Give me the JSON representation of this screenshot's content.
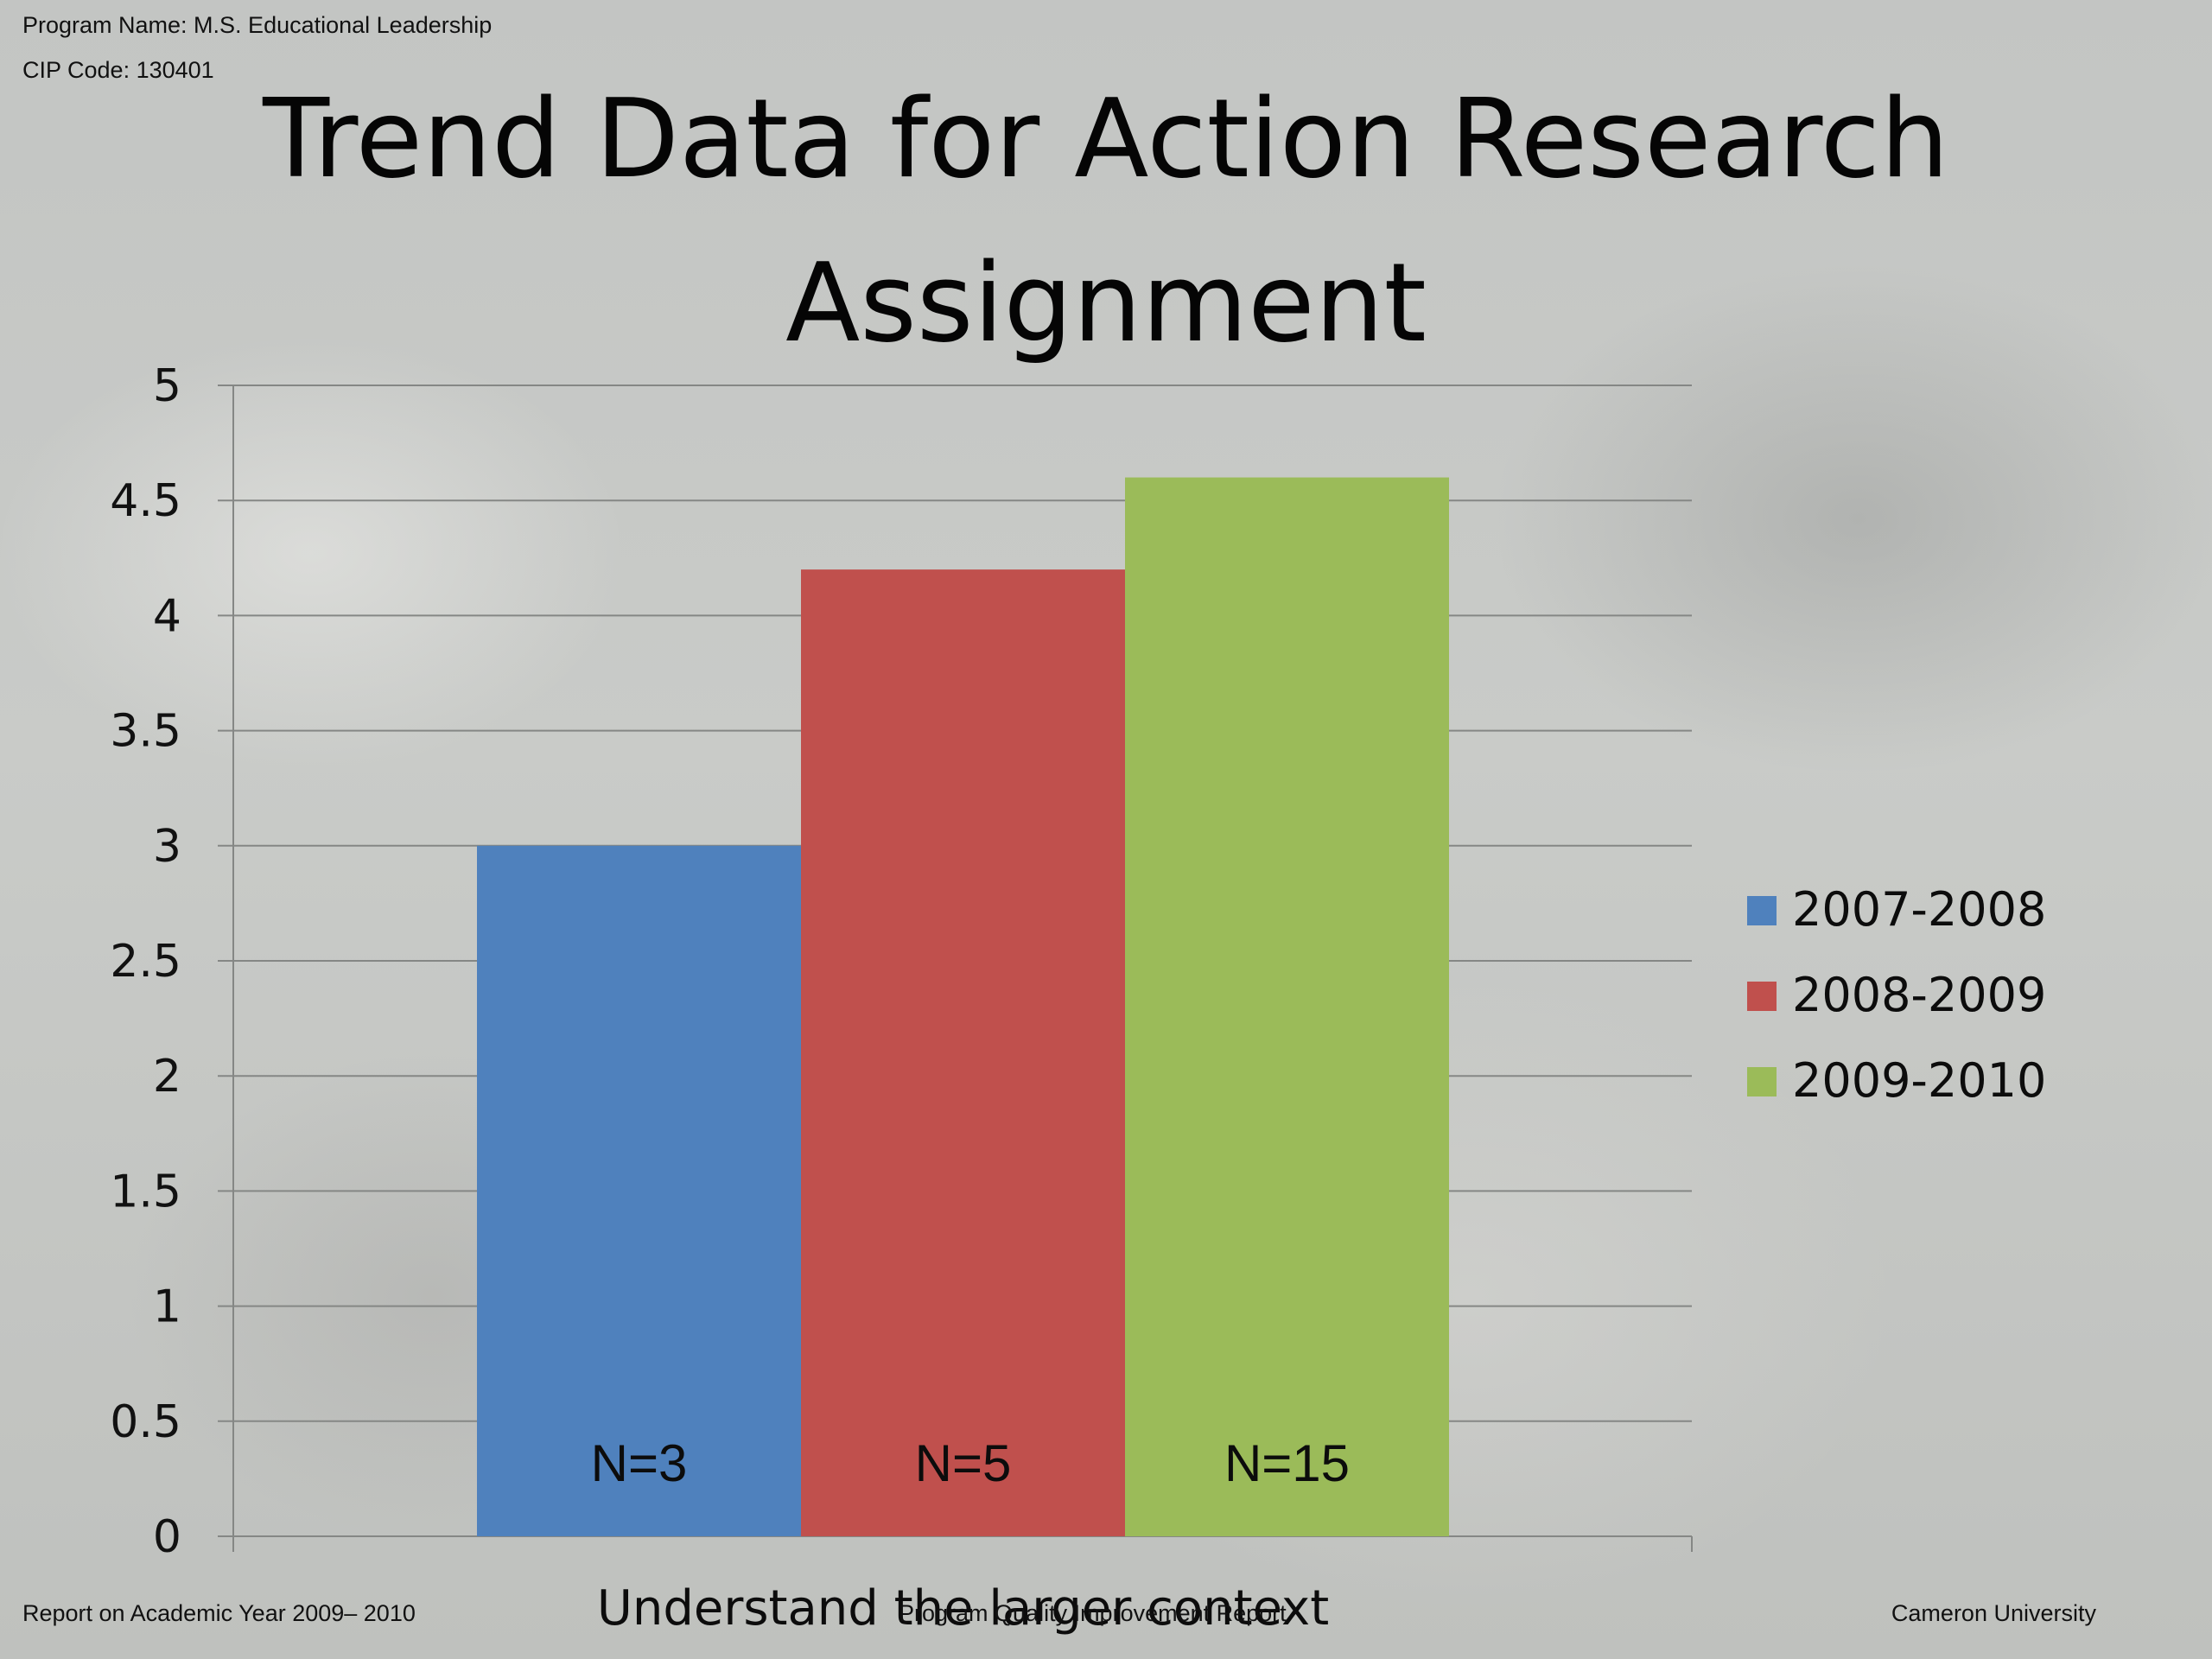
{
  "header": {
    "program_name": "Program Name: M.S. Educational Leadership",
    "cip_code": "CIP Code: 130401"
  },
  "footer": {
    "left": "Report on Academic Year 2009– 2010",
    "center": "Program Quality Improvement Report",
    "right": "Cameron University"
  },
  "chart_data": {
    "type": "bar",
    "title": "Trend Data for Action Research Assignment",
    "categories": [
      "Understand the larger context"
    ],
    "series": [
      {
        "name": "2007-2008",
        "values": [
          3.0
        ],
        "label": "N=3",
        "color": "#4f81bd"
      },
      {
        "name": "2008-2009",
        "values": [
          4.2
        ],
        "label": "N=5",
        "color": "#c0504d"
      },
      {
        "name": "2009-2010",
        "values": [
          4.6
        ],
        "label": "N=15",
        "color": "#9bbb59"
      }
    ],
    "ylim": [
      0,
      5
    ],
    "yticks": [
      0,
      0.5,
      1,
      1.5,
      2,
      2.5,
      3,
      3.5,
      4,
      4.5,
      5
    ],
    "grid": true,
    "legend_position": "right",
    "xlabel": "",
    "ylabel": ""
  }
}
